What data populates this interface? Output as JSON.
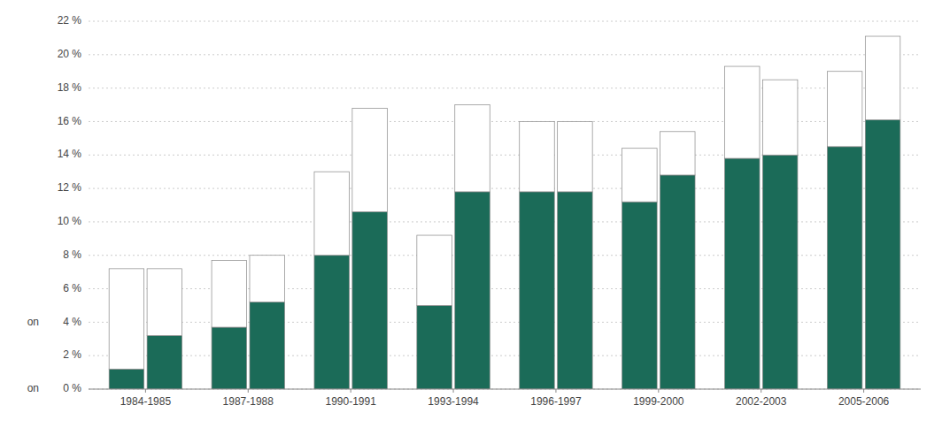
{
  "chart_data": {
    "type": "bar",
    "stacked": true,
    "grid": true,
    "categories": [
      "1984-1985",
      null,
      "1987-1988",
      null,
      "1990-1991",
      null,
      "1993-1994",
      null,
      "1996-1997",
      null,
      "1999-2000",
      null,
      "2002-2003",
      null,
      "2005-2006",
      null
    ],
    "series": [
      {
        "color": "#1b6b58",
        "values": [
          1.2,
          3.2,
          3.7,
          5.2,
          8.0,
          10.6,
          5.0,
          11.8,
          11.8,
          11.8,
          11.2,
          12.8,
          13.8,
          14.0,
          14.5,
          16.1
        ]
      },
      {
        "color": "#ffffff",
        "values": [
          6.0,
          4.0,
          4.0,
          2.8,
          5.0,
          6.2,
          4.2,
          5.2,
          4.2,
          4.2,
          3.2,
          2.6,
          5.5,
          4.5,
          4.5,
          5.0
        ]
      }
    ],
    "ylim": [
      0,
      22
    ],
    "yticks": [
      {
        "value": 0,
        "label": "0 %"
      },
      {
        "value": 2,
        "label": "2 %"
      },
      {
        "value": 4,
        "label": "4 %"
      },
      {
        "value": 6,
        "label": "6 %"
      },
      {
        "value": 8,
        "label": "8 %"
      },
      {
        "value": 10,
        "label": "10 %"
      },
      {
        "value": 12,
        "label": "12 %"
      },
      {
        "value": 14,
        "label": "14 %"
      },
      {
        "value": 16,
        "label": "16 %"
      },
      {
        "value": 18,
        "label": "18 %"
      },
      {
        "value": 20,
        "label": "20 %"
      },
      {
        "value": 22,
        "label": "22 %"
      }
    ],
    "annotations": [
      {
        "text": "on",
        "y": 4
      },
      {
        "text": "on",
        "y": 0
      }
    ]
  }
}
